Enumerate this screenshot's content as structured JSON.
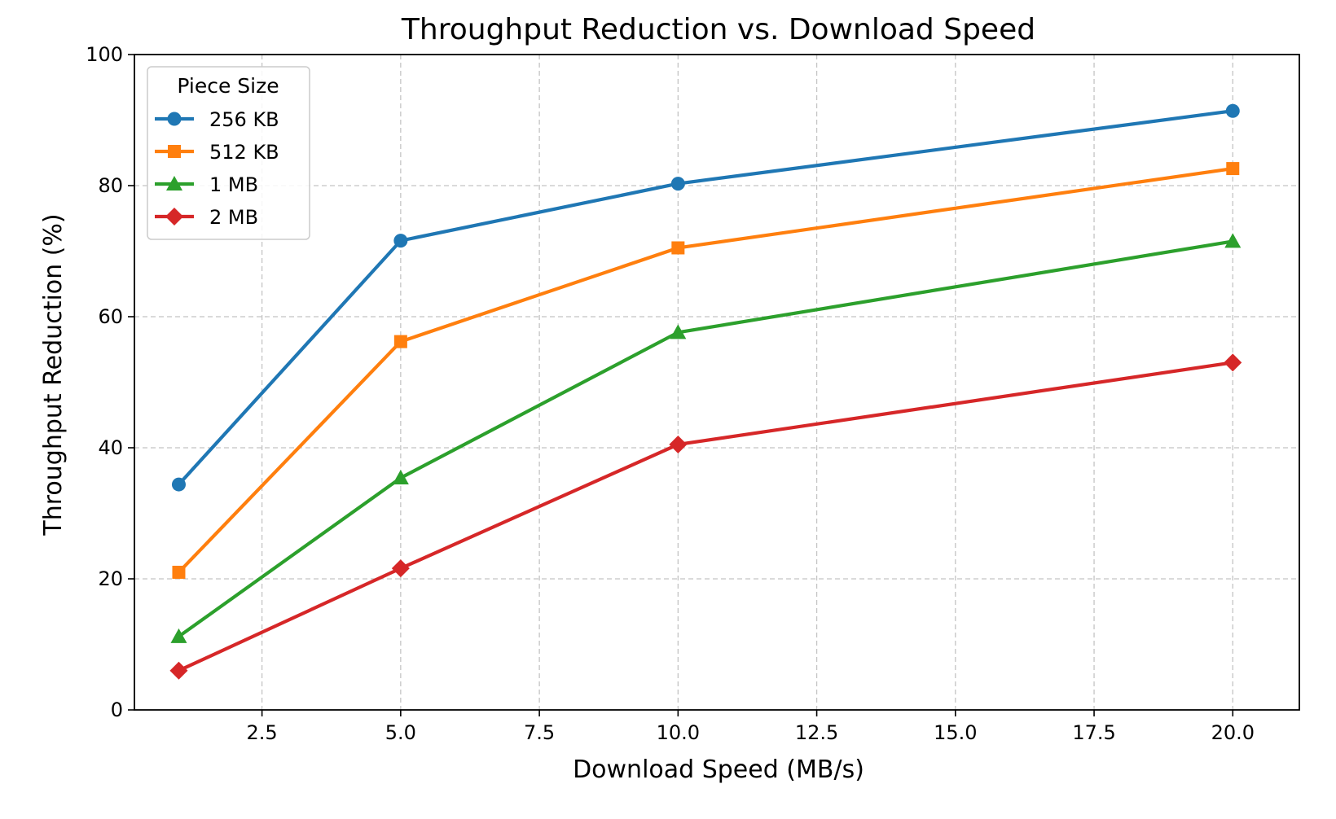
{
  "chart_data": {
    "type": "line",
    "title": "Throughput Reduction vs. Download Speed",
    "xlabel": "Download Speed (MB/s)",
    "ylabel": "Throughput Reduction (%)",
    "xlim": [
      0.2,
      21.2
    ],
    "ylim": [
      0,
      100
    ],
    "xticks": [
      2.5,
      5.0,
      7.5,
      10.0,
      12.5,
      15.0,
      17.5,
      20.0
    ],
    "xtick_labels": [
      "2.5",
      "5.0",
      "7.5",
      "10.0",
      "12.5",
      "15.0",
      "17.5",
      "20.0"
    ],
    "yticks": [
      0,
      20,
      40,
      60,
      80,
      100
    ],
    "ytick_labels": [
      "0",
      "20",
      "40",
      "60",
      "80",
      "100"
    ],
    "grid": true,
    "legend_title": "Piece Size",
    "legend_position": "top-left",
    "x": [
      1,
      5,
      10,
      20
    ],
    "series": [
      {
        "name": "256 KB",
        "color": "#1f77b4",
        "marker": "circle",
        "values": [
          34.4,
          71.6,
          80.3,
          91.4
        ]
      },
      {
        "name": "512 KB",
        "color": "#ff7f0e",
        "marker": "square",
        "values": [
          21.0,
          56.2,
          70.5,
          82.6
        ]
      },
      {
        "name": "1 MB",
        "color": "#2ca02c",
        "marker": "triangle",
        "values": [
          11.2,
          35.4,
          57.6,
          71.5
        ]
      },
      {
        "name": "2 MB",
        "color": "#d62728",
        "marker": "diamond",
        "values": [
          6.0,
          21.6,
          40.5,
          53.0
        ]
      }
    ]
  }
}
